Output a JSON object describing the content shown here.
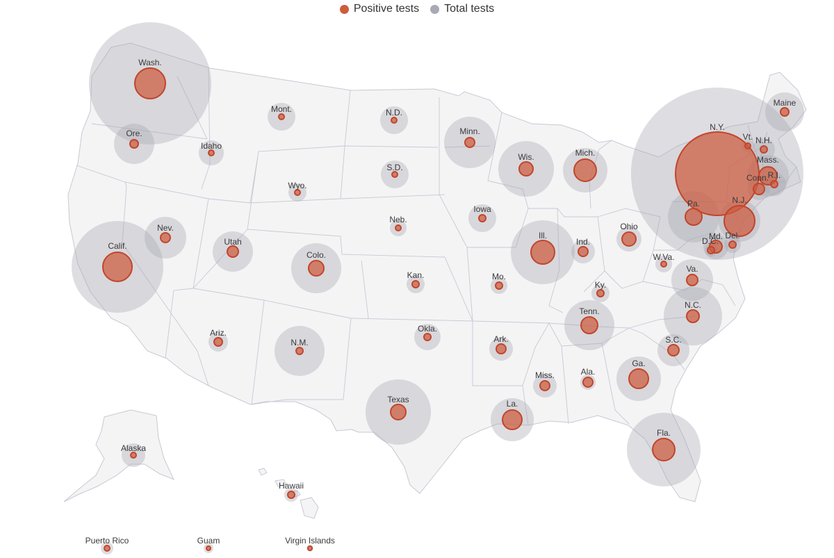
{
  "legend": {
    "positive_label": "Positive tests",
    "total_label": "Total tests"
  },
  "colors": {
    "positive": "#cd5c3e",
    "total": "#a7a9b4",
    "land": "#f4f4f5",
    "border": "#c7c9d3"
  },
  "states": [
    {
      "key": "wash",
      "label": "Wash."
    },
    {
      "key": "ore",
      "label": "Ore."
    },
    {
      "key": "idaho",
      "label": "Idaho"
    },
    {
      "key": "mont",
      "label": "Mont."
    },
    {
      "key": "nd",
      "label": "N.D."
    },
    {
      "key": "minn",
      "label": "Minn."
    },
    {
      "key": "wis",
      "label": "Wis."
    },
    {
      "key": "mich",
      "label": "Mich."
    },
    {
      "key": "ny",
      "label": "N.Y."
    },
    {
      "key": "vt",
      "label": "Vt."
    },
    {
      "key": "nh",
      "label": "N.H."
    },
    {
      "key": "maine",
      "label": "Maine"
    },
    {
      "key": "mass",
      "label": "Mass."
    },
    {
      "key": "ri",
      "label": "R.I."
    },
    {
      "key": "conn",
      "label": "Conn."
    },
    {
      "key": "nj",
      "label": "N.J."
    },
    {
      "key": "pa",
      "label": "Pa."
    },
    {
      "key": "del",
      "label": "Del."
    },
    {
      "key": "md",
      "label": "Md."
    },
    {
      "key": "dc",
      "label": "D.C."
    },
    {
      "key": "sd",
      "label": "S.D."
    },
    {
      "key": "wyo",
      "label": "Wyo."
    },
    {
      "key": "nev",
      "label": "Nev."
    },
    {
      "key": "calif",
      "label": "Calif."
    },
    {
      "key": "utah",
      "label": "Utah"
    },
    {
      "key": "colo",
      "label": "Colo."
    },
    {
      "key": "neb",
      "label": "Neb."
    },
    {
      "key": "iowa",
      "label": "Iowa"
    },
    {
      "key": "ill",
      "label": "Ill."
    },
    {
      "key": "ind",
      "label": "Ind."
    },
    {
      "key": "ohio",
      "label": "Ohio"
    },
    {
      "key": "wva",
      "label": "W.Va."
    },
    {
      "key": "va",
      "label": "Va."
    },
    {
      "key": "kan",
      "label": "Kan."
    },
    {
      "key": "mo",
      "label": "Mo."
    },
    {
      "key": "ky",
      "label": "Ky."
    },
    {
      "key": "nc",
      "label": "N.C."
    },
    {
      "key": "tenn",
      "label": "Tenn."
    },
    {
      "key": "ariz",
      "label": "Ariz."
    },
    {
      "key": "nm",
      "label": "N.M."
    },
    {
      "key": "okla",
      "label": "Okla."
    },
    {
      "key": "ark",
      "label": "Ark."
    },
    {
      "key": "sc",
      "label": "S.C."
    },
    {
      "key": "ga",
      "label": "Ga."
    },
    {
      "key": "ala",
      "label": "Ala."
    },
    {
      "key": "miss",
      "label": "Miss."
    },
    {
      "key": "texas",
      "label": "Texas"
    },
    {
      "key": "la",
      "label": "La."
    },
    {
      "key": "fla",
      "label": "Fla."
    },
    {
      "key": "alaska",
      "label": "Alaska"
    },
    {
      "key": "hawaii",
      "label": "Hawaii"
    },
    {
      "key": "pr",
      "label": "Puerto Rico"
    },
    {
      "key": "guam",
      "label": "Guam"
    },
    {
      "key": "vi",
      "label": "Virgin Islands"
    }
  ]
}
